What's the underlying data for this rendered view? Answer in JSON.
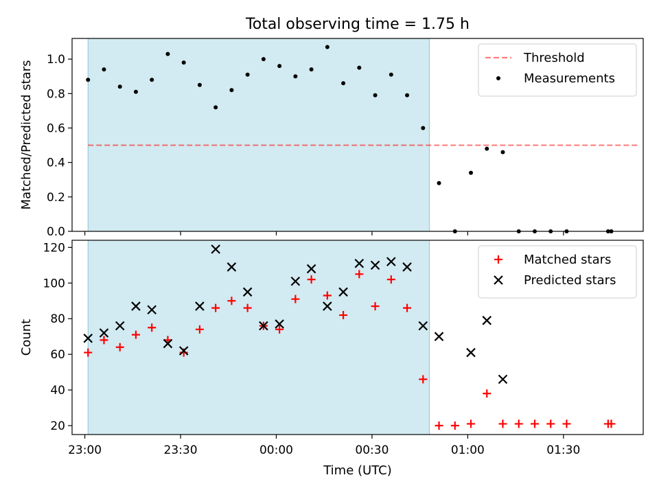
{
  "figure": {
    "title": "Total observing time = 1.75 h",
    "shaded_color": "#add8e6"
  },
  "chart_data": [
    {
      "type": "scatter",
      "ylabel": "Matched/Predicted stars",
      "xlabel": "",
      "xlim": [
        "22:56",
        "01:55"
      ],
      "ylim": [
        0,
        1.12
      ],
      "yticks": [
        0.0,
        0.2,
        0.4,
        0.6,
        0.8,
        1.0
      ],
      "yticklabels": [
        "0.0",
        "0.2",
        "0.4",
        "0.6",
        "0.8",
        "1.0"
      ],
      "xticks": [
        "23:00",
        "23:30",
        "00:00",
        "00:30",
        "01:00",
        "01:30"
      ],
      "show_xticklabels": false,
      "shaded_span": [
        "23:01",
        "00:48"
      ],
      "legend_position": "upper right",
      "threshold": {
        "name": "Threshold",
        "value": 0.5,
        "x_range": [
          "23:01",
          "01:54"
        ],
        "color": "#ff0000",
        "opacity": 0.5
      },
      "series": [
        {
          "name": "Measurements",
          "marker": "dot",
          "color": "#000000",
          "x": [
            "23:01",
            "23:06",
            "23:11",
            "23:16",
            "23:21",
            "23:26",
            "23:31",
            "23:36",
            "23:41",
            "23:46",
            "23:51",
            "23:56",
            "00:01",
            "00:06",
            "00:11",
            "00:16",
            "00:21",
            "00:26",
            "00:31",
            "00:36",
            "00:41",
            "00:46",
            "00:51",
            "00:56",
            "01:01",
            "01:06",
            "01:11",
            "01:16",
            "01:21",
            "01:26",
            "01:31",
            "01:44",
            "01:45"
          ],
          "y": [
            0.88,
            0.94,
            0.84,
            0.81,
            0.88,
            1.03,
            0.98,
            0.85,
            0.72,
            0.82,
            0.91,
            1.0,
            0.96,
            0.9,
            0.94,
            1.07,
            0.86,
            0.95,
            0.79,
            0.91,
            0.79,
            0.6,
            0.28,
            0.0,
            0.34,
            0.48,
            0.46,
            0.0,
            0.0,
            0.0,
            0.0,
            0.0,
            0.0
          ]
        }
      ]
    },
    {
      "type": "scatter",
      "ylabel": "Count",
      "xlabel": "Time (UTC)",
      "xlim": [
        "22:56",
        "01:55"
      ],
      "ylim": [
        15,
        124
      ],
      "yticks": [
        20,
        40,
        60,
        80,
        100,
        120
      ],
      "yticklabels": [
        "20",
        "40",
        "60",
        "80",
        "100",
        "120"
      ],
      "xticks": [
        "23:00",
        "23:30",
        "00:00",
        "00:30",
        "01:00",
        "01:30"
      ],
      "xticklabels": [
        "23:00",
        "23:30",
        "00:00",
        "00:30",
        "01:00",
        "01:30"
      ],
      "show_xticklabels": true,
      "shaded_span": [
        "23:01",
        "00:48"
      ],
      "legend_position": "upper right",
      "series": [
        {
          "name": "Matched stars",
          "marker": "plus",
          "color": "#ff0000",
          "x": [
            "23:01",
            "23:06",
            "23:11",
            "23:16",
            "23:21",
            "23:26",
            "23:31",
            "23:36",
            "23:41",
            "23:46",
            "23:51",
            "23:56",
            "00:01",
            "00:06",
            "00:11",
            "00:16",
            "00:21",
            "00:26",
            "00:31",
            "00:36",
            "00:41",
            "00:46",
            "00:51",
            "00:56",
            "01:01",
            "01:06",
            "01:11",
            "01:16",
            "01:21",
            "01:26",
            "01:31",
            "01:44",
            "01:45"
          ],
          "y": [
            61,
            68,
            64,
            71,
            75,
            68,
            61,
            74,
            86,
            90,
            86,
            76,
            74,
            91,
            102,
            93,
            82,
            105,
            87,
            102,
            86,
            46,
            20,
            20,
            21,
            38,
            21,
            21,
            21,
            21,
            21,
            21,
            21
          ]
        },
        {
          "name": "Predicted stars",
          "marker": "x",
          "color": "#000000",
          "x": [
            "23:01",
            "23:06",
            "23:11",
            "23:16",
            "23:21",
            "23:26",
            "23:31",
            "23:36",
            "23:41",
            "23:46",
            "23:51",
            "23:56",
            "00:01",
            "00:06",
            "00:11",
            "00:16",
            "00:21",
            "00:26",
            "00:31",
            "00:36",
            "00:41",
            "00:46",
            "00:51",
            "01:01",
            "01:06",
            "01:11"
          ],
          "y": [
            69,
            72,
            76,
            87,
            85,
            66,
            62,
            87,
            119,
            109,
            95,
            76,
            77,
            101,
            108,
            87,
            95,
            111,
            110,
            112,
            109,
            76,
            70,
            61,
            79,
            46
          ]
        }
      ]
    }
  ]
}
